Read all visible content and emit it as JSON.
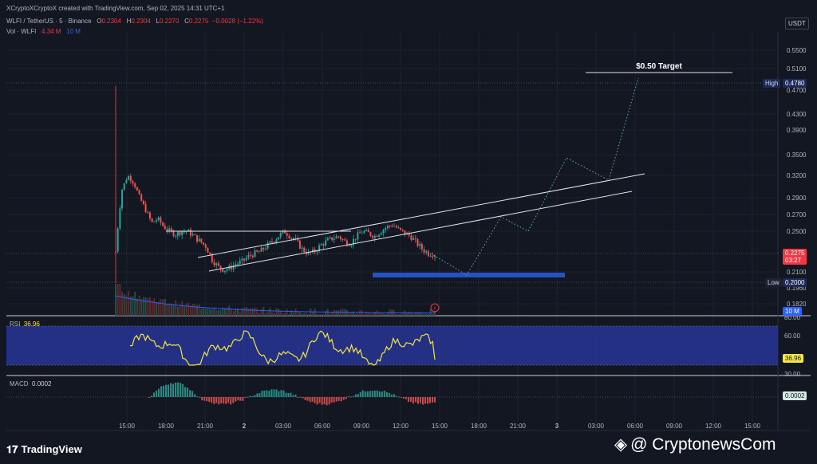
{
  "header": {
    "credit": "XCryptoXCryptoX created with TradingView.com, Sep 02, 2025 14:31 UTC+1",
    "symbol": "WLFI / TetherUS · 5 · Binance",
    "o_label": "O",
    "o_val": "0.2304",
    "h_label": "H",
    "h_val": "0.2304",
    "l_label": "L",
    "l_val": "0.2270",
    "c_label": "C",
    "c_val": "0.2275",
    "change": "−0.0028 (−1.22%)",
    "vol_label": "Vol · WLFI",
    "vol_val": "4.34 M",
    "vol_ma": "10 M"
  },
  "currency": "USDT",
  "annotations": {
    "target_label": "$0.50 Target",
    "high_label": "High",
    "high_val": "0.4780",
    "low_label": "Low",
    "low_val": "0.2000",
    "last_price": "0.2275",
    "countdown": "03:27",
    "volume_badge": "10 M"
  },
  "rsi": {
    "label": "RSI",
    "value": "36.96",
    "levels": [
      "80.00",
      "60.00",
      "30.00"
    ]
  },
  "macd": {
    "label": "MACD",
    "value": "0.0002"
  },
  "footer": {
    "brand": "TradingView",
    "watermark": "@ CryptonewsCom"
  },
  "colors": {
    "up": "#26a69a",
    "down": "#ef5350",
    "rsi_line": "#f5e642",
    "rsi_band": "#2a3aa6",
    "support_zone": "#2451c4",
    "background": "#131722"
  },
  "chart_data": {
    "type": "candlestick",
    "y_axis_ticks": [
      "0.5500",
      "0.5100",
      "0.4700",
      "0.4300",
      "0.3900",
      "0.3500",
      "0.3200",
      "0.2900",
      "0.2700",
      "0.2500",
      "0.2100",
      "0.1960",
      "0.1820"
    ],
    "x_axis_ticks": [
      "15:00",
      "18:00",
      "21:00",
      "2",
      "03:00",
      "06:00",
      "09:00",
      "12:00",
      "15:00",
      "18:00",
      "21:00",
      "3",
      "03:00",
      "06:00",
      "09:00",
      "12:00",
      "15:00"
    ],
    "close_path": [
      0.23,
      0.3,
      0.32,
      0.31,
      0.29,
      0.275,
      0.26,
      0.265,
      0.255,
      0.25,
      0.247,
      0.25,
      0.25,
      0.245,
      0.24,
      0.235,
      0.222,
      0.215,
      0.212,
      0.214,
      0.218,
      0.22,
      0.225,
      0.228,
      0.23,
      0.235,
      0.24,
      0.245,
      0.25,
      0.245,
      0.24,
      0.232,
      0.228,
      0.23,
      0.236,
      0.24,
      0.243,
      0.245,
      0.24,
      0.238,
      0.245,
      0.25,
      0.248,
      0.245,
      0.25,
      0.255,
      0.258,
      0.252,
      0.248,
      0.245,
      0.238,
      0.232,
      0.228,
      0.2275
    ],
    "ohlc_last": {
      "open": 0.2304,
      "high": 0.2304,
      "low": 0.227,
      "close": 0.2275
    },
    "high": 0.478,
    "low": 0.2,
    "target": 0.5,
    "support_zone": 0.205,
    "projection": [
      0.2275,
      0.205,
      0.265,
      0.25,
      0.345,
      0.32,
      0.478
    ],
    "rsi_last": 36.96,
    "macd_last": 0.0002
  }
}
